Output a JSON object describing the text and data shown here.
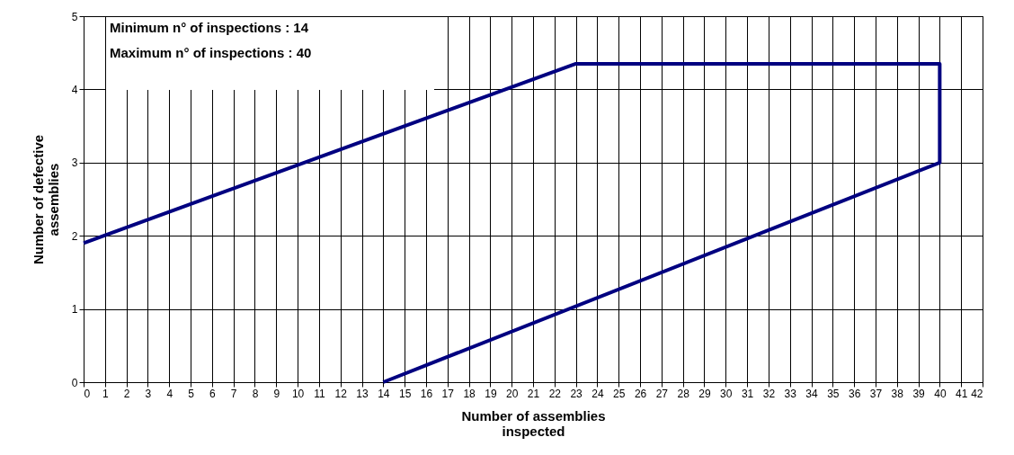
{
  "chart_data": {
    "type": "line",
    "xlabel": "Number of assemblies inspected",
    "ylabel": "Number of defective assemblies",
    "annotations": [
      "Minimum n° of inspections : 14",
      "Maximum n° of inspections : 40"
    ],
    "x": [
      0,
      23,
      40,
      40,
      14
    ],
    "series": [
      {
        "color": "#000080",
        "values": [
          1.9,
          4.35,
          4.35,
          3,
          0
        ]
      }
    ],
    "xlim": [
      0,
      42
    ],
    "xticks": [
      0,
      1,
      2,
      3,
      4,
      5,
      6,
      7,
      8,
      9,
      10,
      11,
      12,
      13,
      14,
      15,
      16,
      17,
      18,
      19,
      20,
      21,
      22,
      23,
      24,
      25,
      26,
      27,
      28,
      29,
      30,
      31,
      32,
      33,
      34,
      35,
      36,
      37,
      38,
      39,
      40,
      41,
      42
    ],
    "ylim": [
      0,
      5
    ],
    "yticks": [
      0,
      1,
      2,
      3,
      4,
      5
    ],
    "grid": true,
    "marker": "none",
    "line_style": "solid"
  }
}
